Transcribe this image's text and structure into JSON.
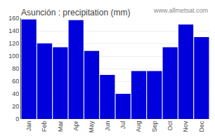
{
  "chart_data": {
    "type": "bar",
    "title": "Asunción : precipitation (mm)",
    "categories": [
      "Jan",
      "Feb",
      "Mar",
      "Apr",
      "May",
      "Jun",
      "Jul",
      "Aug",
      "Sep",
      "Oct",
      "Nov",
      "Dec"
    ],
    "values": [
      158,
      120,
      114,
      157,
      108,
      70,
      40,
      76,
      76,
      114,
      150,
      130
    ],
    "color": "#0000dd",
    "ylim": [
      0,
      160
    ],
    "yticks": [
      0,
      20,
      40,
      60,
      80,
      100,
      120,
      140,
      160
    ],
    "grid": true,
    "annotations": [
      "www.allmetsat.com"
    ]
  }
}
